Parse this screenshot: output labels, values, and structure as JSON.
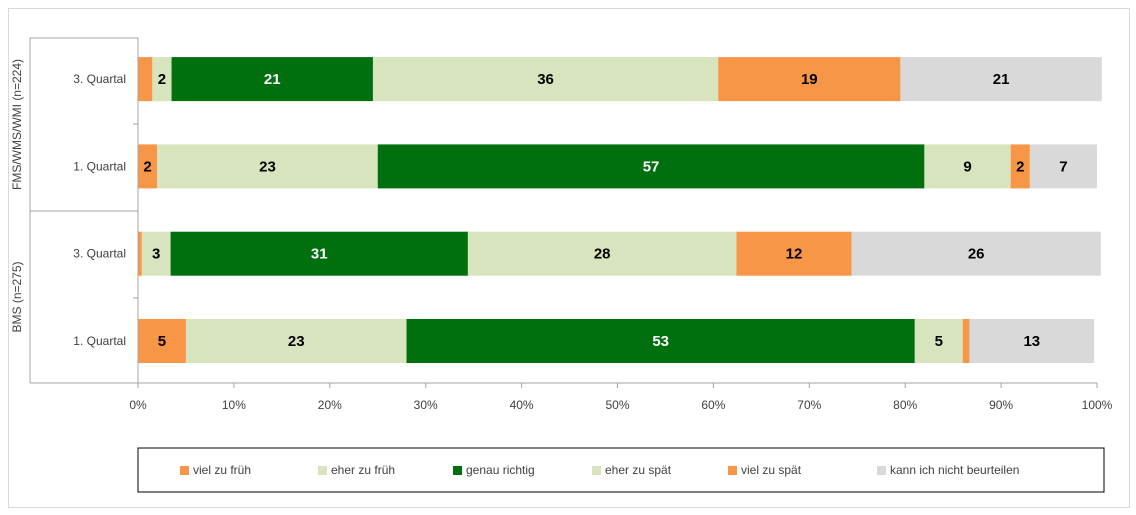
{
  "chart_data": {
    "type": "bar",
    "orientation": "horizontal",
    "stacked": "100%",
    "groups": [
      "BMS (n=275)",
      "FMS/WMS/WMI (n=224)"
    ],
    "rows": [
      {
        "group": "BMS (n=275)",
        "label": "1. Quartal"
      },
      {
        "group": "BMS (n=275)",
        "label": "3. Quartal"
      },
      {
        "group": "FMS/WMS/WMI (n=224)",
        "label": "1. Quartal"
      },
      {
        "group": "FMS/WMS/WMI (n=224)",
        "label": "3. Quartal"
      }
    ],
    "series": [
      {
        "name": "viel zu früh",
        "color": "#f79646",
        "values": [
          5,
          0.4,
          2,
          1.5
        ],
        "labels": [
          "5",
          "",
          "2",
          ""
        ],
        "label_color": "#000000"
      },
      {
        "name": "eher zu früh",
        "color": "#d7e4bd",
        "values": [
          23,
          3,
          23,
          2
        ],
        "labels": [
          "23",
          "3",
          "23",
          "2"
        ],
        "label_color": "#000000"
      },
      {
        "name": "genau richtig",
        "color": "#00700f",
        "values": [
          53,
          31,
          57,
          21
        ],
        "labels": [
          "53",
          "31",
          "57",
          "21"
        ],
        "label_color": "#ffffff"
      },
      {
        "name": "eher zu spät",
        "color": "#d7e4bd",
        "values": [
          5,
          28,
          9,
          36
        ],
        "labels": [
          "5",
          "28",
          "9",
          "36"
        ],
        "label_color": "#000000"
      },
      {
        "name": "viel zu spät",
        "color": "#f79646",
        "values": [
          0.7,
          12,
          2,
          19
        ],
        "labels": [
          "",
          "12",
          "2",
          "19"
        ],
        "label_color": "#000000"
      },
      {
        "name": "kann ich nicht beurteilen",
        "color": "#d9d9d9",
        "values": [
          13,
          26,
          7,
          21
        ],
        "labels": [
          "13",
          "26",
          "7",
          "21"
        ],
        "label_color": "#000000"
      }
    ],
    "x_ticks": [
      "0%",
      "10%",
      "20%",
      "30%",
      "40%",
      "50%",
      "60%",
      "70%",
      "80%",
      "90%",
      "100%"
    ],
    "xlim": [
      0,
      100
    ],
    "grid": false,
    "legend_position": "bottom"
  }
}
